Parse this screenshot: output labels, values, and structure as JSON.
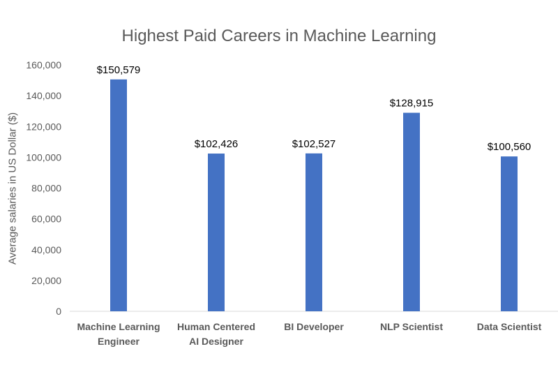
{
  "chart_data": {
    "type": "bar",
    "title": "Highest Paid Careers in Machine Learning",
    "xlabel": "",
    "ylabel": "Average salaries in US Dollar ($)",
    "ylim": [
      0,
      160000
    ],
    "yticks": [
      0,
      20000,
      40000,
      60000,
      80000,
      100000,
      120000,
      140000,
      160000
    ],
    "ytick_labels": [
      "0",
      "20,000",
      "40,000",
      "60,000",
      "80,000",
      "100,000",
      "120,000",
      "140,000",
      "160,000"
    ],
    "grid": false,
    "legend": "none",
    "categories": [
      [
        "Machine Learning",
        "Engineer"
      ],
      [
        "Human Centered",
        "AI Designer"
      ],
      [
        "BI Developer"
      ],
      [
        "NLP Scientist"
      ],
      [
        "Data Scientist"
      ]
    ],
    "values": [
      150579,
      102426,
      102527,
      128915,
      100560
    ],
    "data_labels": [
      "$150,579",
      "$102,426",
      "$102,527",
      "$128,915",
      "$100,560"
    ],
    "colors": {
      "bar": "#4472C4",
      "axis_text": "#595959",
      "data_label": "#000000",
      "axis_line": "#D9D9D9"
    }
  }
}
